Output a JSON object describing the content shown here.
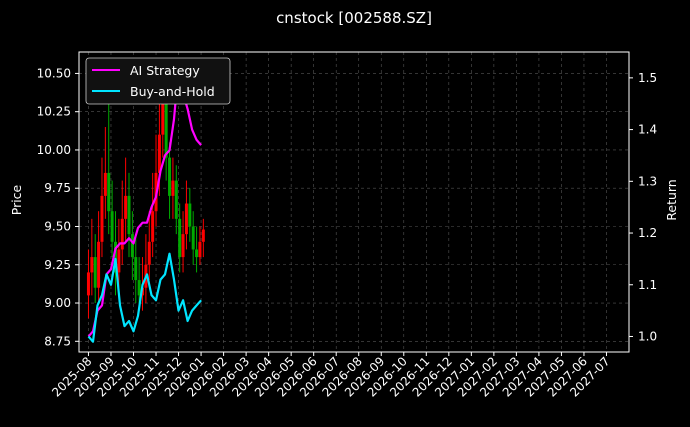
{
  "chart_data": {
    "type": "line",
    "title": "cnstock [002588.SZ]",
    "ylabel_left": "Price",
    "ylabel_right": "Return",
    "xlabel": "",
    "grid": true,
    "legend_position": "top-left",
    "colors": {
      "background": "#000000",
      "ai_strategy": "#ff00ff",
      "buy_and_hold": "#00e5ff",
      "candle_up": "#ff0000",
      "candle_down": "#00aa00",
      "grid": "#555555",
      "axes": "#ffffff"
    },
    "x_tick_labels": [
      "2025-08",
      "2025-09",
      "2025-10",
      "2025-11",
      "2025-12",
      "2026-01",
      "2026-02",
      "2026-03",
      "2026-04",
      "2026-05",
      "2026-06",
      "2026-07",
      "2026-08",
      "2026-09",
      "2026-10",
      "2026-11",
      "2026-12",
      "2027-01",
      "2027-02",
      "2027-03",
      "2027-04",
      "2027-05",
      "2027-06",
      "2027-07"
    ],
    "y_left_ticks": [
      "8.75",
      "9.00",
      "9.25",
      "9.50",
      "9.75",
      "10.00",
      "10.25",
      "10.50"
    ],
    "y_right_ticks": [
      "1.0",
      "1.1",
      "1.2",
      "1.3",
      "1.4",
      "1.5"
    ],
    "y_left_range": [
      8.68,
      10.64
    ],
    "y_right_range": [
      0.97,
      1.55
    ],
    "x_range_months": [
      -0.42,
      24.0
    ],
    "price_candles": {
      "x_month": [
        0.0,
        0.15,
        0.3,
        0.45,
        0.6,
        0.75,
        0.9,
        1.05,
        1.2,
        1.35,
        1.5,
        1.65,
        1.8,
        1.95,
        2.1,
        2.25,
        2.4,
        2.55,
        2.7,
        2.85,
        3.0,
        3.15,
        3.3,
        3.45,
        3.6,
        3.75,
        3.9,
        4.05,
        4.2,
        4.35,
        4.5,
        4.65,
        4.8,
        4.95,
        5.1
      ],
      "open": [
        9.05,
        9.2,
        9.3,
        9.1,
        9.4,
        9.7,
        9.85,
        9.6,
        9.4,
        9.2,
        9.35,
        9.55,
        9.7,
        9.45,
        9.3,
        9.15,
        9.05,
        9.1,
        9.25,
        9.4,
        9.6,
        9.85,
        10.1,
        10.3,
        9.95,
        9.7,
        9.8,
        9.55,
        9.3,
        9.45,
        9.65,
        9.5,
        9.35,
        9.3,
        9.4
      ],
      "close": [
        9.2,
        9.3,
        9.1,
        9.4,
        9.7,
        9.85,
        9.6,
        9.4,
        9.2,
        9.35,
        9.55,
        9.7,
        9.45,
        9.3,
        9.15,
        9.05,
        9.1,
        9.25,
        9.4,
        9.6,
        9.85,
        10.1,
        10.3,
        9.95,
        9.7,
        9.8,
        9.55,
        9.3,
        9.45,
        9.65,
        9.5,
        9.35,
        9.3,
        9.4,
        9.48
      ],
      "high": [
        9.35,
        9.55,
        9.45,
        9.6,
        9.95,
        10.15,
        10.3,
        9.8,
        9.6,
        9.55,
        9.8,
        9.95,
        9.85,
        9.6,
        9.45,
        9.3,
        9.3,
        9.45,
        9.6,
        9.85,
        10.1,
        10.35,
        10.5,
        10.4,
        10.05,
        9.95,
        9.9,
        9.65,
        9.6,
        9.8,
        9.75,
        9.6,
        9.5,
        9.5,
        9.55
      ],
      "low": [
        8.9,
        9.05,
        9.0,
        9.0,
        9.3,
        9.55,
        9.45,
        9.3,
        9.05,
        9.1,
        9.25,
        9.4,
        9.3,
        9.15,
        9.0,
        8.95,
        8.95,
        9.0,
        9.15,
        9.3,
        9.5,
        9.7,
        9.95,
        9.8,
        9.55,
        9.55,
        9.45,
        9.2,
        9.2,
        9.35,
        9.4,
        9.25,
        9.2,
        9.25,
        9.3
      ]
    },
    "series": [
      {
        "name": "AI Strategy",
        "x_month": [
          0.0,
          0.2,
          0.4,
          0.6,
          0.8,
          1.0,
          1.2,
          1.4,
          1.6,
          1.8,
          2.0,
          2.2,
          2.4,
          2.6,
          2.8,
          3.0,
          3.2,
          3.4,
          3.6,
          3.8,
          4.0,
          4.2,
          4.4,
          4.6,
          4.8,
          5.0
        ],
        "values": [
          1.0,
          1.01,
          1.05,
          1.06,
          1.12,
          1.13,
          1.17,
          1.18,
          1.18,
          1.19,
          1.18,
          1.21,
          1.22,
          1.22,
          1.25,
          1.27,
          1.32,
          1.35,
          1.36,
          1.42,
          1.52,
          1.47,
          1.44,
          1.4,
          1.38,
          1.37
        ]
      },
      {
        "name": "Buy-and-Hold",
        "x_month": [
          0.0,
          0.2,
          0.4,
          0.6,
          0.8,
          1.0,
          1.2,
          1.4,
          1.6,
          1.8,
          2.0,
          2.2,
          2.4,
          2.6,
          2.8,
          3.0,
          3.2,
          3.4,
          3.6,
          3.8,
          4.0,
          4.2,
          4.4,
          4.6,
          4.8,
          5.0
        ],
        "values": [
          1.0,
          0.99,
          1.06,
          1.08,
          1.12,
          1.1,
          1.15,
          1.06,
          1.02,
          1.03,
          1.01,
          1.04,
          1.1,
          1.12,
          1.08,
          1.07,
          1.11,
          1.12,
          1.16,
          1.11,
          1.05,
          1.07,
          1.03,
          1.05,
          1.06,
          1.07
        ]
      }
    ]
  }
}
